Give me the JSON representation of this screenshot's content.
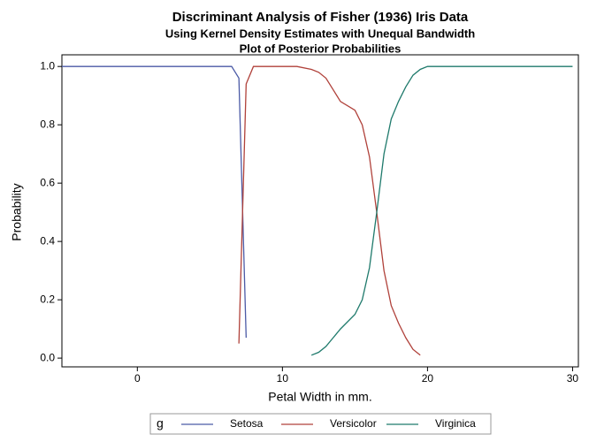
{
  "chart_data": {
    "type": "line",
    "title": "Discriminant Analysis of Fisher (1936) Iris Data",
    "subtitle": [
      "Using Kernel Density Estimates with Unequal Bandwidth",
      "Plot of Posterior Probabilities"
    ],
    "x_label": "Petal Width in mm.",
    "y_label": "Probability",
    "legend_title": "g",
    "xlim": [
      -5.2,
      30.4
    ],
    "xticks": [
      0,
      10,
      20,
      30
    ],
    "ylim": [
      -0.03,
      1.04
    ],
    "yticks": [
      {
        "value": 0,
        "label": "0.0"
      },
      {
        "value": 0.2,
        "label": "0.2"
      },
      {
        "value": 0.4,
        "label": "0.4"
      },
      {
        "value": 0.6,
        "label": "0.6"
      },
      {
        "value": 0.8,
        "label": "0.8"
      },
      {
        "value": 1,
        "label": "1.0"
      }
    ],
    "series": [
      {
        "name": "Setosa",
        "color": "#4b5aa6",
        "x": [
          -5.2,
          6.5,
          7.0,
          7.5
        ],
        "values": [
          1.0,
          1.0,
          0.96,
          0.07
        ]
      },
      {
        "name": "Versicolor",
        "color": "#b0413a",
        "x": [
          7.0,
          7.5,
          8.0,
          11.0,
          12.0,
          12.5,
          13.0,
          13.5,
          14.0,
          15.0,
          15.5,
          16.0,
          16.5,
          17.0,
          17.5,
          18.0,
          18.5,
          19.0,
          19.5
        ],
        "values": [
          0.05,
          0.94,
          1.0,
          1.0,
          0.99,
          0.98,
          0.96,
          0.92,
          0.88,
          0.85,
          0.8,
          0.69,
          0.5,
          0.3,
          0.18,
          0.12,
          0.07,
          0.03,
          0.01
        ]
      },
      {
        "name": "Virginica",
        "color": "#1f7a6c",
        "x": [
          12.0,
          12.5,
          13.0,
          13.5,
          14.0,
          15.0,
          15.5,
          16.0,
          16.5,
          17.0,
          17.5,
          18.0,
          18.5,
          19.0,
          19.5,
          20.0,
          30.0
        ],
        "values": [
          0.01,
          0.02,
          0.04,
          0.07,
          0.1,
          0.15,
          0.2,
          0.31,
          0.5,
          0.7,
          0.82,
          0.88,
          0.93,
          0.97,
          0.99,
          1.0,
          1.0
        ]
      }
    ]
  }
}
